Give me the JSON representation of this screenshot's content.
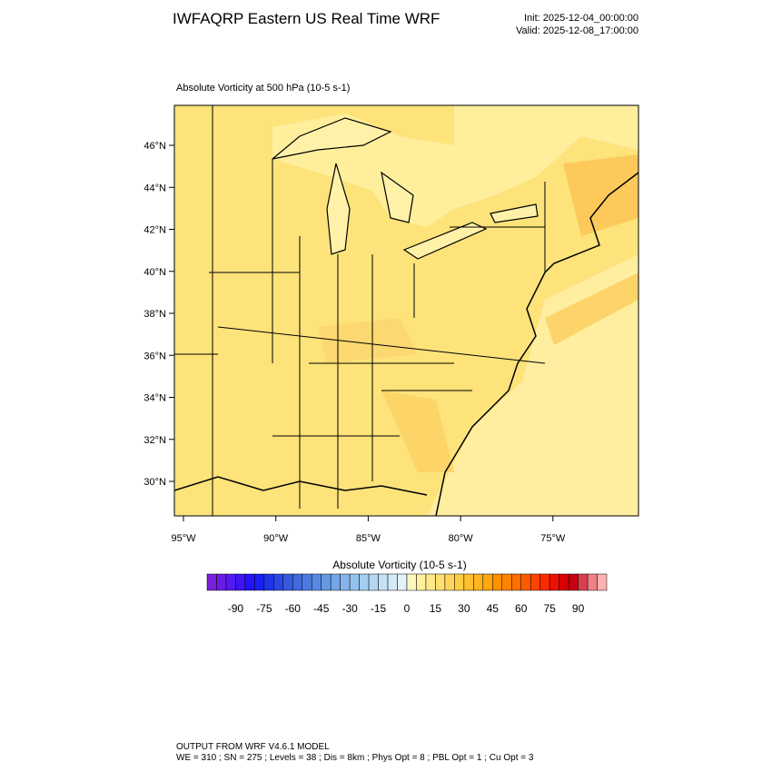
{
  "header": {
    "title": "IWFAQRP Eastern US Real Time WRF",
    "init": "Init: 2025-12-04_00:00:00",
    "valid": "Valid: 2025-12-08_17:00:00"
  },
  "map": {
    "subtitle": "Absolute Vorticity at 500 hPa   (10-5 s-1)",
    "lat_labels": [
      "46°N",
      "44°N",
      "42°N",
      "40°N",
      "38°N",
      "36°N",
      "34°N",
      "32°N",
      "30°N"
    ],
    "lon_labels": [
      "95°W",
      "90°W",
      "85°W",
      "80°W",
      "75°W"
    ]
  },
  "colorbar": {
    "title": "Absolute Vorticity  (10-5 s-1)",
    "ticks": [
      -90,
      -75,
      -60,
      -45,
      -30,
      -15,
      0,
      15,
      30,
      45,
      60,
      75,
      90
    ],
    "colors": [
      "#7a1fd9",
      "#6a1be6",
      "#5518ef",
      "#3c14f5",
      "#2412f8",
      "#1a1ef0",
      "#1f34e6",
      "#2a48e0",
      "#355ade",
      "#406ade",
      "#4c7ae0",
      "#588ae2",
      "#6698e4",
      "#74a6e8",
      "#84b4ea",
      "#94c2ee",
      "#a4ceef",
      "#b4d8f2",
      "#c4e2f4",
      "#d4eaf7",
      "#e4f2fa",
      "#fff7c0",
      "#fff0a0",
      "#ffe98a",
      "#ffe070",
      "#ffd65a",
      "#ffcc44",
      "#ffc030",
      "#ffb420",
      "#ffa810",
      "#ff9000",
      "#ff8200",
      "#ff7000",
      "#ff5c00",
      "#ff4400",
      "#ff2a00",
      "#f01000",
      "#d80000",
      "#c80010",
      "#d84050",
      "#f08088",
      "#ffb0b0"
    ]
  },
  "footer": {
    "line1": "OUTPUT FROM WRF V4.6.1 MODEL",
    "line2": "WE = 310 ; SN = 275 ; Levels = 38 ; Dis = 8km ; Phys Opt = 8 ; PBL Opt = 1 ; Cu Opt = 3"
  }
}
